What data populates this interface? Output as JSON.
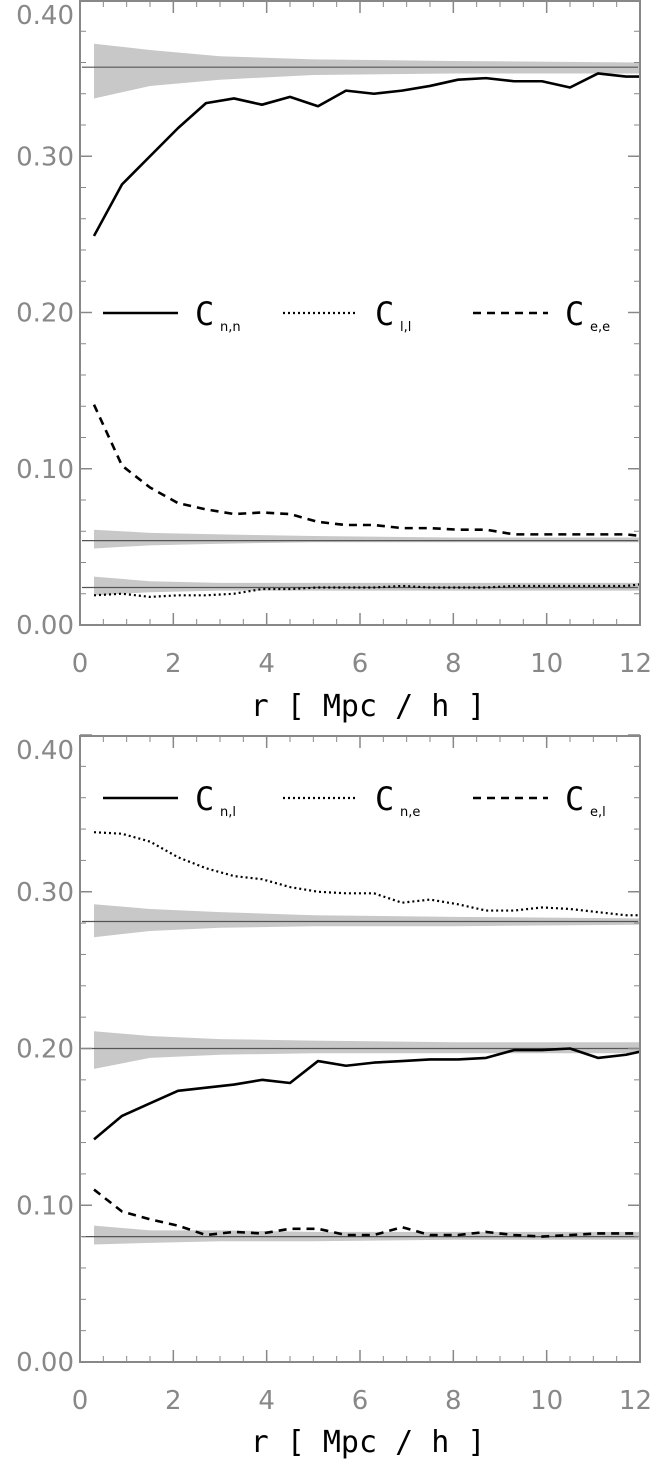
{
  "chart_data": [
    {
      "type": "line",
      "xlabel": "r [ Mpc / h ]",
      "ylabel": "",
      "xlim": [
        0,
        12
      ],
      "ylim": [
        0,
        0.4
      ],
      "x_ticks": [
        "0",
        "2",
        "4",
        "6",
        "8",
        "10",
        "12"
      ],
      "y_ticks": [
        "0.00",
        "0.10",
        "0.20",
        "0.30",
        "0.40"
      ],
      "legend": [
        {
          "main": "C",
          "sub": "n,n",
          "style": "solid"
        },
        {
          "main": "C",
          "sub": "l,l",
          "style": "dotted"
        },
        {
          "main": "C",
          "sub": "e,e",
          "style": "dashed"
        }
      ],
      "reference_lines": [
        0.357,
        0.054,
        0.024
      ],
      "bands": [
        {
          "x": [
            0.3,
            1.5,
            3,
            5,
            8,
            12
          ],
          "lower": [
            0.337,
            0.345,
            0.349,
            0.352,
            0.353,
            0.353
          ],
          "upper": [
            0.372,
            0.368,
            0.364,
            0.362,
            0.361,
            0.36
          ]
        },
        {
          "x": [
            0.3,
            1.5,
            3,
            5,
            8,
            12
          ],
          "lower": [
            0.049,
            0.051,
            0.052,
            0.053,
            0.053,
            0.053
          ],
          "upper": [
            0.061,
            0.059,
            0.058,
            0.057,
            0.056,
            0.056
          ]
        },
        {
          "x": [
            0.3,
            1.5,
            3,
            5,
            8,
            12
          ],
          "lower": [
            0.019,
            0.021,
            0.022,
            0.022,
            0.022,
            0.022
          ],
          "upper": [
            0.031,
            0.028,
            0.027,
            0.027,
            0.027,
            0.027
          ]
        }
      ],
      "series": [
        {
          "style": "solid",
          "x": [
            0.3,
            0.9,
            1.5,
            2.1,
            2.7,
            3.3,
            3.9,
            4.5,
            5.1,
            5.7,
            6.3,
            6.9,
            7.5,
            8.1,
            8.7,
            9.3,
            9.9,
            10.5,
            11.1,
            11.7,
            12.0
          ],
          "y": [
            0.249,
            0.282,
            0.3,
            0.318,
            0.334,
            0.337,
            0.333,
            0.338,
            0.332,
            0.342,
            0.34,
            0.342,
            0.345,
            0.349,
            0.35,
            0.348,
            0.348,
            0.344,
            0.353,
            0.351,
            0.351
          ]
        },
        {
          "style": "dotted",
          "x": [
            0.3,
            0.9,
            1.5,
            2.1,
            2.7,
            3.3,
            3.9,
            4.5,
            5.1,
            5.7,
            6.3,
            6.9,
            7.5,
            8.1,
            8.7,
            9.3,
            9.9,
            10.5,
            11.1,
            11.7,
            12.0
          ],
          "y": [
            0.019,
            0.02,
            0.018,
            0.019,
            0.019,
            0.02,
            0.023,
            0.023,
            0.024,
            0.024,
            0.024,
            0.025,
            0.024,
            0.024,
            0.024,
            0.025,
            0.025,
            0.025,
            0.025,
            0.025,
            0.026
          ]
        },
        {
          "style": "dashed",
          "x": [
            0.3,
            0.9,
            1.5,
            2.1,
            2.7,
            3.3,
            3.9,
            4.5,
            5.1,
            5.7,
            6.3,
            6.9,
            7.5,
            8.1,
            8.7,
            9.3,
            9.9,
            10.5,
            11.1,
            11.7,
            12.0
          ],
          "y": [
            0.141,
            0.102,
            0.088,
            0.078,
            0.074,
            0.071,
            0.072,
            0.071,
            0.066,
            0.064,
            0.064,
            0.062,
            0.062,
            0.061,
            0.061,
            0.058,
            0.058,
            0.058,
            0.058,
            0.058,
            0.057
          ]
        }
      ]
    },
    {
      "type": "line",
      "xlabel": "r [ Mpc / h ]",
      "ylabel": "",
      "xlim": [
        0,
        12
      ],
      "ylim": [
        0,
        0.4
      ],
      "x_ticks": [
        "0",
        "2",
        "4",
        "6",
        "8",
        "10",
        "12"
      ],
      "y_ticks": [
        "0.00",
        "0.10",
        "0.20",
        "0.30",
        "0.40"
      ],
      "legend": [
        {
          "main": "C",
          "sub": "n,l",
          "style": "solid"
        },
        {
          "main": "C",
          "sub": "n,e",
          "style": "dotted"
        },
        {
          "main": "C",
          "sub": "e,l",
          "style": "dashed"
        }
      ],
      "reference_lines": [
        0.281,
        0.2,
        0.08
      ],
      "bands": [
        {
          "x": [
            0.3,
            1.5,
            3,
            5,
            8,
            12
          ],
          "lower": [
            0.271,
            0.275,
            0.277,
            0.278,
            0.278,
            0.279
          ],
          "upper": [
            0.292,
            0.289,
            0.287,
            0.285,
            0.284,
            0.283
          ]
        },
        {
          "x": [
            0.3,
            1.5,
            3,
            5,
            8,
            12
          ],
          "lower": [
            0.187,
            0.194,
            0.196,
            0.197,
            0.197,
            0.197
          ],
          "upper": [
            0.211,
            0.208,
            0.206,
            0.205,
            0.204,
            0.204
          ]
        },
        {
          "x": [
            0.3,
            1.5,
            3,
            5,
            8,
            12
          ],
          "lower": [
            0.075,
            0.076,
            0.077,
            0.077,
            0.078,
            0.078
          ],
          "upper": [
            0.087,
            0.084,
            0.084,
            0.083,
            0.083,
            0.083
          ]
        }
      ],
      "series": [
        {
          "style": "solid",
          "x": [
            0.3,
            0.9,
            1.5,
            2.1,
            2.7,
            3.3,
            3.9,
            4.5,
            5.1,
            5.7,
            6.3,
            6.9,
            7.5,
            8.1,
            8.7,
            9.3,
            9.9,
            10.5,
            11.1,
            11.7,
            12.0
          ],
          "y": [
            0.142,
            0.157,
            0.165,
            0.173,
            0.175,
            0.177,
            0.18,
            0.178,
            0.192,
            0.189,
            0.191,
            0.192,
            0.193,
            0.193,
            0.194,
            0.199,
            0.199,
            0.2,
            0.194,
            0.196,
            0.198
          ]
        },
        {
          "style": "dotted",
          "x": [
            0.3,
            0.9,
            1.5,
            2.1,
            2.7,
            3.3,
            3.9,
            4.5,
            5.1,
            5.7,
            6.3,
            6.9,
            7.5,
            8.1,
            8.7,
            9.3,
            9.9,
            10.5,
            11.1,
            11.7,
            12.0
          ],
          "y": [
            0.338,
            0.337,
            0.332,
            0.322,
            0.315,
            0.31,
            0.308,
            0.303,
            0.3,
            0.299,
            0.299,
            0.293,
            0.295,
            0.292,
            0.288,
            0.288,
            0.29,
            0.289,
            0.287,
            0.285,
            0.285
          ]
        },
        {
          "style": "dashed",
          "x": [
            0.3,
            0.9,
            1.5,
            2.1,
            2.7,
            3.3,
            3.9,
            4.5,
            5.1,
            5.7,
            6.3,
            6.9,
            7.5,
            8.1,
            8.7,
            9.3,
            9.9,
            10.5,
            11.1,
            11.7,
            12.0
          ],
          "y": [
            0.11,
            0.096,
            0.091,
            0.087,
            0.081,
            0.083,
            0.082,
            0.085,
            0.085,
            0.081,
            0.081,
            0.086,
            0.081,
            0.081,
            0.083,
            0.081,
            0.08,
            0.081,
            0.082,
            0.082,
            0.082
          ]
        }
      ]
    }
  ],
  "colors": {
    "band": "#c8c8c8",
    "reference_line": "#555555",
    "series": "#000000",
    "frame": "#888888",
    "tick_label": "#888888"
  }
}
